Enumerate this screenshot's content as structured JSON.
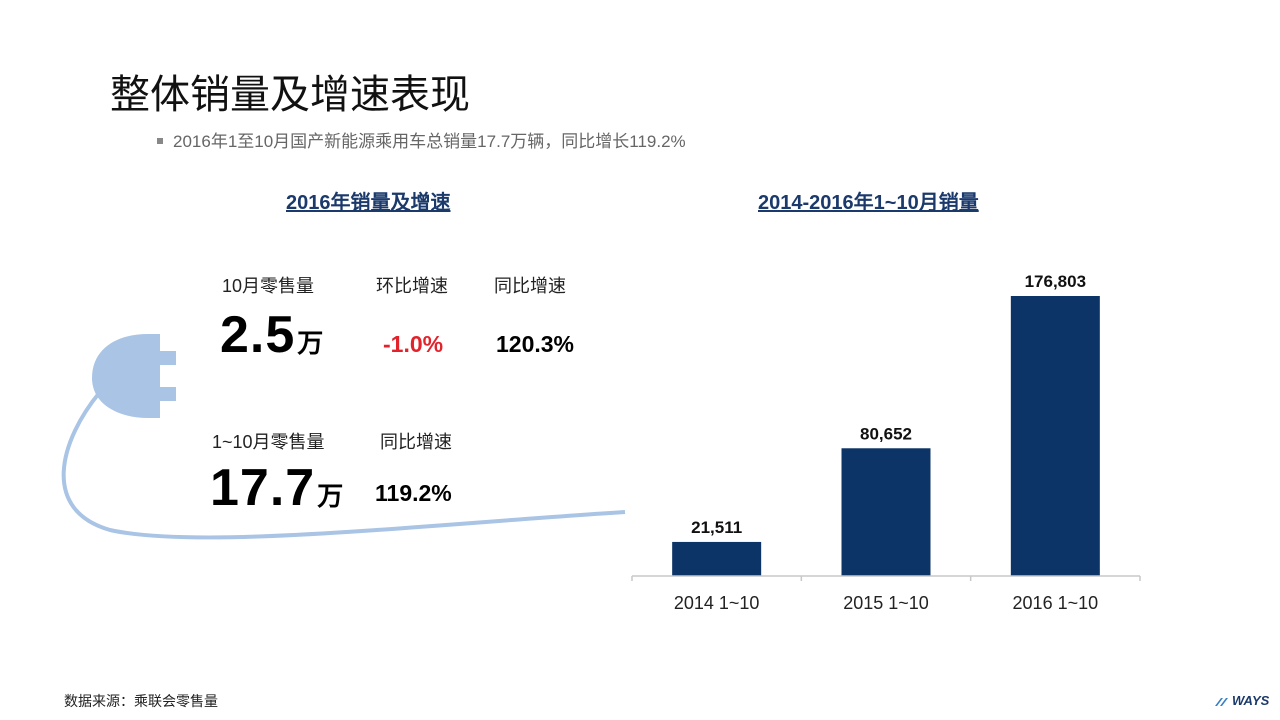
{
  "page": {
    "title": "整体销量及增速表现",
    "bullet": "2016年1至10月国产新能源乘用车总销量17.7万辆，同比增长119.2%",
    "source": "数据来源：乘联会零售量",
    "logo": "WAYS"
  },
  "left_panel": {
    "title": "2016年销量及增速",
    "row1": {
      "label_month": "10月零售量",
      "label_mom": "环比增速",
      "label_yoy": "同比增速",
      "value_month": "2.5",
      "unit_month": "万",
      "value_mom": "-1.0%",
      "value_yoy": "120.3%"
    },
    "row2": {
      "label_ytd": "1~10月零售量",
      "label_yoy": "同比增速",
      "value_ytd": "17.7",
      "unit_ytd": "万",
      "value_yoy": "119.2%"
    }
  },
  "colors": {
    "bar": "#0d3466",
    "plug": "#a9c4e4",
    "negative": "#e3232b",
    "section_title": "#1b3a6b"
  },
  "chart_data": {
    "type": "bar",
    "title": "2014-2016年1~10月销量",
    "categories": [
      "2014 1~10",
      "2015 1~10",
      "2016 1~10"
    ],
    "values": [
      21511,
      80652,
      176803
    ],
    "data_labels": [
      "21,511",
      "80,652",
      "176,803"
    ],
    "xlabel": "",
    "ylabel": "",
    "ylim": [
      0,
      176803
    ],
    "grid": false,
    "legend": "none"
  }
}
